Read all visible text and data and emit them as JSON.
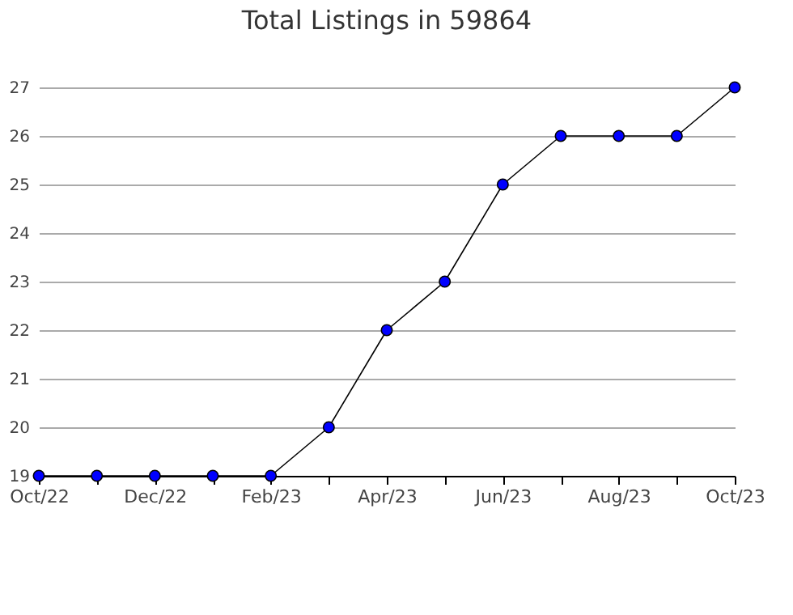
{
  "chart_data": {
    "type": "line",
    "title": "Total Listings in 59864",
    "categories": [
      "Oct/22",
      null,
      "Dec/22",
      null,
      "Feb/23",
      null,
      "Apr/23",
      null,
      "Jun/23",
      null,
      "Aug/23",
      null,
      "Oct/23"
    ],
    "series": [
      {
        "color": "#0000ff",
        "values": [
          19,
          19,
          19,
          19,
          19,
          20,
          22,
          23,
          25,
          26,
          26,
          26,
          27
        ]
      }
    ],
    "ylim": [
      19,
      27
    ],
    "yticks": [
      19,
      20,
      21,
      22,
      23,
      24,
      25,
      26,
      27
    ],
    "grid": "y",
    "marker": "circle",
    "line_style": "solid",
    "legend": false
  }
}
